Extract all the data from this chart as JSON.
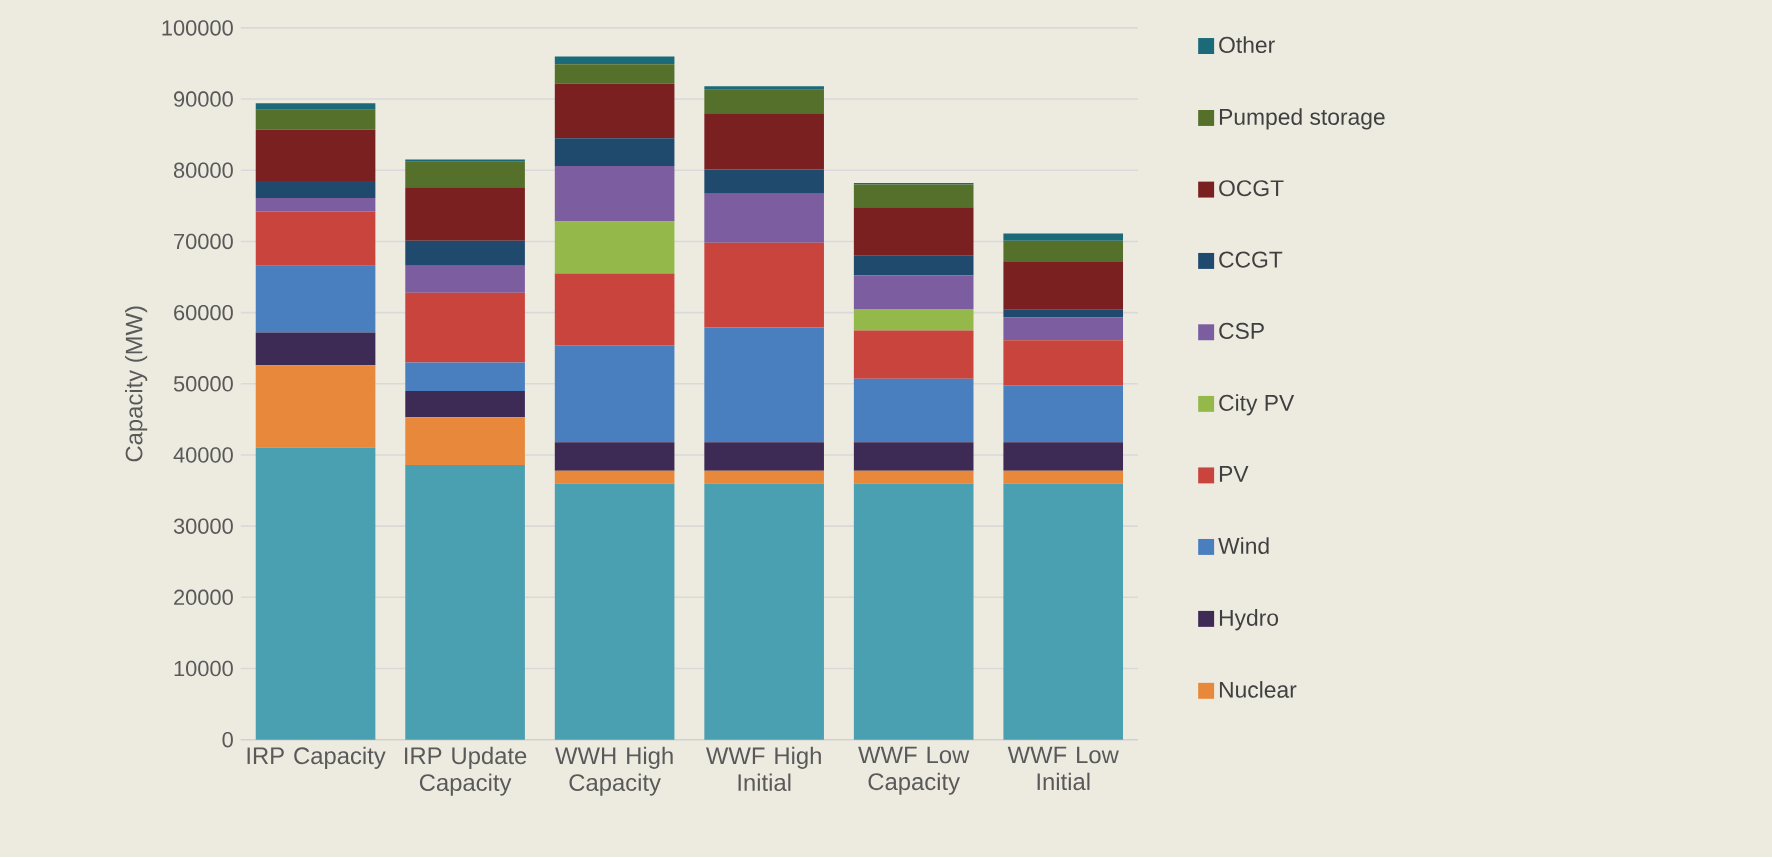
{
  "chart_data": {
    "type": "bar",
    "stacked": true,
    "ylabel": "Capacity (MW)",
    "categories": [
      "IRP Capacity",
      "IRP Update Capacity",
      "WWH High Capacity",
      "WWF High Initial",
      "WWF Low Capacity",
      "WWF Low Initial"
    ],
    "series": [
      {
        "color": "#4a9fb0",
        "values": [
          41000,
          38600,
          36000,
          36000,
          36000,
          36000
        ]
      },
      {
        "name": "Nuclear",
        "color": "#e8883a",
        "values": [
          11600,
          6700,
          1800,
          1800,
          1800,
          1800
        ]
      },
      {
        "name": "Hydro",
        "color": "#3d2a55",
        "values": [
          4600,
          3700,
          4000,
          4000,
          4000,
          4000
        ]
      },
      {
        "name": "Wind",
        "color": "#4a7fbf",
        "values": [
          9400,
          4000,
          13600,
          16100,
          8900,
          8000
        ]
      },
      {
        "name": "PV",
        "color": "#c8443c",
        "values": [
          7600,
          9800,
          10100,
          11900,
          6800,
          6300
        ]
      },
      {
        "name": "City PV",
        "color": "#95b84a",
        "values": [
          0,
          0,
          7300,
          0,
          3000,
          0
        ]
      },
      {
        "name": "CSP",
        "color": "#7b5da0",
        "values": [
          1900,
          3800,
          7800,
          6900,
          4700,
          3200
        ]
      },
      {
        "name": "CCGT",
        "color": "#1f4a6e",
        "values": [
          2400,
          3500,
          3900,
          3400,
          2800,
          1100
        ]
      },
      {
        "name": "OCGT",
        "color": "#7a2020",
        "values": [
          7200,
          7500,
          7700,
          7900,
          6800,
          6800
        ]
      },
      {
        "name": "Pumped storage",
        "color": "#55702a",
        "values": [
          2800,
          3600,
          2700,
          3300,
          3200,
          2900
        ]
      },
      {
        "name": "Other",
        "color": "#1a6a7a",
        "values": [
          900,
          300,
          1100,
          500,
          200,
          1000
        ]
      }
    ],
    "ylim": [
      0,
      100000
    ],
    "yticks": [
      0,
      10000,
      20000,
      30000,
      40000,
      50000,
      60000,
      70000,
      80000,
      90000,
      100000
    ],
    "grid": "y",
    "legend": "right"
  }
}
